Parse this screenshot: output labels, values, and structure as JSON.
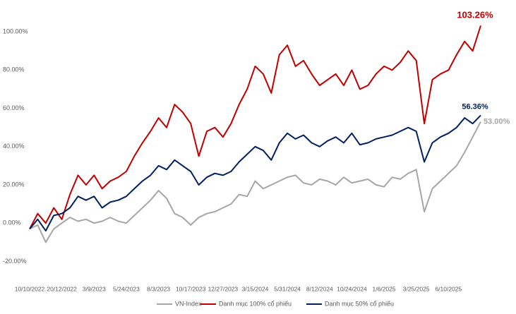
{
  "chart_data": {
    "type": "line",
    "categories": [
      "10/10/2022",
      null,
      null,
      null,
      "20/12/2022",
      null,
      null,
      null,
      "3/9/2023",
      null,
      null,
      null,
      "5/24/2023",
      null,
      null,
      null,
      "8/3/2023",
      null,
      null,
      null,
      "10/17/2023",
      null,
      null,
      null,
      "12/27/2023",
      null,
      null,
      null,
      "3/15/2024",
      null,
      null,
      null,
      "5/31/2024",
      null,
      null,
      null,
      "8/12/2024",
      null,
      null,
      null,
      "10/24/2024",
      null,
      null,
      null,
      "1/6/2025",
      null,
      null,
      null,
      "3/25/2025",
      null,
      null,
      null,
      "6/10/2025",
      null,
      null,
      null,
      null
    ],
    "series": [
      {
        "name": "VN-Index",
        "color": "#a6a6a6",
        "values": [
          -3,
          -1,
          -10,
          -3,
          0,
          3,
          1,
          2,
          0,
          1,
          3,
          1,
          0,
          4,
          8,
          12,
          17,
          13,
          5,
          3,
          -1,
          3,
          5,
          6,
          8,
          10,
          15,
          14,
          22,
          18,
          20,
          22,
          24,
          25,
          21,
          20,
          23,
          22,
          20,
          24,
          21,
          22,
          23,
          20,
          19,
          24,
          23,
          26,
          28,
          6,
          18,
          22,
          26,
          30,
          37,
          45,
          53
        ],
        "value_labels": [
          null,
          null,
          null,
          null,
          null,
          null,
          null,
          null,
          null,
          null,
          null,
          null,
          null,
          null,
          null,
          null,
          null,
          null,
          null,
          null,
          null,
          null,
          null,
          null,
          null,
          null,
          null,
          null,
          null,
          null,
          null,
          null,
          null,
          null,
          null,
          null,
          null,
          null,
          null,
          null,
          null,
          null,
          null,
          null,
          null,
          null,
          null,
          null,
          null,
          null,
          null,
          null,
          null,
          null,
          null,
          null,
          "53.00%"
        ]
      },
      {
        "name": "Danh mục 100% cổ phiếu",
        "color": "#c00000",
        "values": [
          -3,
          5,
          0,
          8,
          2,
          15,
          25,
          20,
          25,
          18,
          22,
          24,
          27,
          35,
          42,
          48,
          55,
          50,
          62,
          58,
          52,
          35,
          48,
          50,
          45,
          52,
          62,
          70,
          82,
          78,
          68,
          88,
          93,
          82,
          85,
          78,
          72,
          75,
          78,
          72,
          80,
          70,
          72,
          78,
          82,
          80,
          84,
          90,
          85,
          52,
          75,
          78,
          80,
          88,
          95,
          90,
          103.26
        ],
        "value_labels": [
          null,
          null,
          null,
          null,
          null,
          null,
          null,
          null,
          null,
          null,
          null,
          null,
          null,
          null,
          null,
          null,
          null,
          null,
          null,
          null,
          null,
          null,
          null,
          null,
          null,
          null,
          null,
          null,
          null,
          null,
          null,
          null,
          null,
          null,
          null,
          null,
          null,
          null,
          null,
          null,
          null,
          null,
          null,
          null,
          null,
          null,
          null,
          null,
          null,
          null,
          null,
          null,
          null,
          null,
          null,
          null,
          "103.26%"
        ]
      },
      {
        "name": "Danh mục 50% cổ phiếu",
        "color": "#002060",
        "values": [
          -3,
          2,
          -4,
          4,
          5,
          8,
          14,
          12,
          14,
          8,
          11,
          12,
          14,
          18,
          22,
          25,
          30,
          28,
          33,
          30,
          27,
          20,
          24,
          26,
          25,
          27,
          32,
          36,
          40,
          38,
          33,
          42,
          47,
          44,
          46,
          42,
          40,
          43,
          45,
          42,
          47,
          41,
          42,
          44,
          45,
          46,
          48,
          50,
          48,
          32,
          42,
          45,
          47,
          50,
          55,
          52,
          56.36
        ],
        "value_labels": [
          null,
          null,
          null,
          null,
          null,
          null,
          null,
          null,
          null,
          null,
          null,
          null,
          null,
          null,
          null,
          null,
          null,
          null,
          null,
          null,
          null,
          null,
          null,
          null,
          null,
          null,
          null,
          null,
          null,
          null,
          null,
          null,
          null,
          null,
          null,
          null,
          null,
          null,
          null,
          null,
          null,
          null,
          null,
          null,
          null,
          null,
          null,
          null,
          null,
          null,
          null,
          null,
          null,
          null,
          null,
          null,
          "56.36%"
        ]
      }
    ],
    "ylim": [
      -25,
      110
    ],
    "yticks": [
      {
        "value": -20,
        "label": "-20.00%"
      },
      {
        "value": 0,
        "label": "0.00%"
      },
      {
        "value": 20,
        "label": "20.00%"
      },
      {
        "value": 40,
        "label": "40.00%"
      },
      {
        "value": 60,
        "label": "60.00%"
      },
      {
        "value": 80,
        "label": "80.00%"
      },
      {
        "value": 100,
        "label": "100.00%"
      }
    ],
    "legend": "bottom"
  }
}
